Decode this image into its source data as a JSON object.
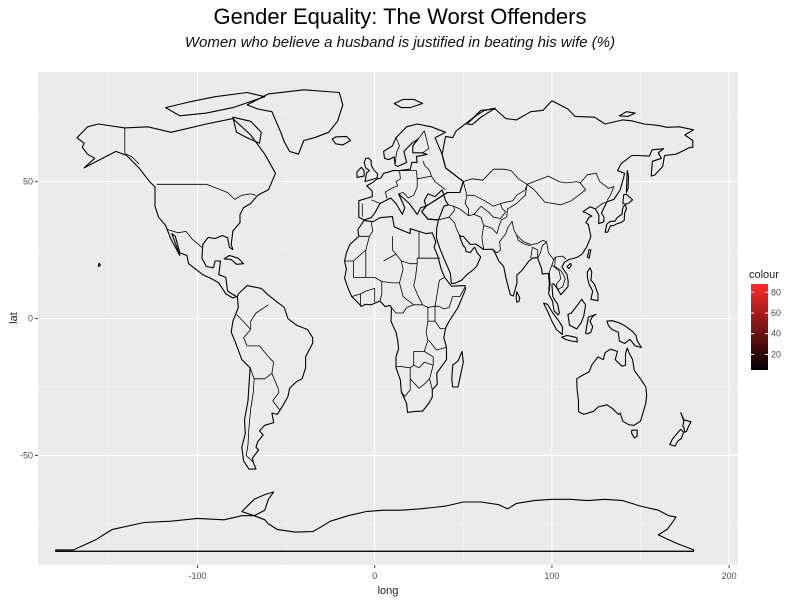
{
  "title": "Gender Equality: The Worst Offenders",
  "subtitle": "Women who believe a husband is justified in beating his wife (%)",
  "chart_data": {
    "type": "map",
    "projection": "longitude/latitude (equirectangular)",
    "xlabel": "long",
    "ylabel": "lat",
    "xlim": [
      -190,
      205
    ],
    "ylim": [
      -90,
      90
    ],
    "x_ticks": [
      -100,
      0,
      100,
      200
    ],
    "x_tick_labels": [
      "-100",
      "0",
      "100",
      "200"
    ],
    "y_ticks": [
      -50,
      0,
      50
    ],
    "y_tick_labels": [
      "-50",
      "0",
      "50"
    ],
    "grid": true,
    "panel_background": "#ebebeb",
    "gridline_color": "#ffffff",
    "outline_color": "#000000",
    "legend": {
      "title": "colour",
      "position": "right",
      "type": "continuous colourbar",
      "low_color": "#000000",
      "high_color": "#ff2a2a",
      "range": [
        5,
        88
      ],
      "breaks": [
        20,
        40,
        60,
        80
      ],
      "labels": [
        "20",
        "40",
        "60",
        "80"
      ]
    },
    "regions": [
      "North America",
      "Greenland",
      "Central America",
      "South America",
      "Europe",
      "Africa",
      "Madagascar",
      "Middle East",
      "Russia",
      "Asia",
      "Arabian Peninsula",
      "India",
      "Southeast Asia",
      "Japan",
      "Indonesia",
      "Philippines",
      "Australia",
      "New Zealand",
      "Antarctica",
      "United Kingdom",
      "Iceland",
      "Cuba"
    ]
  }
}
